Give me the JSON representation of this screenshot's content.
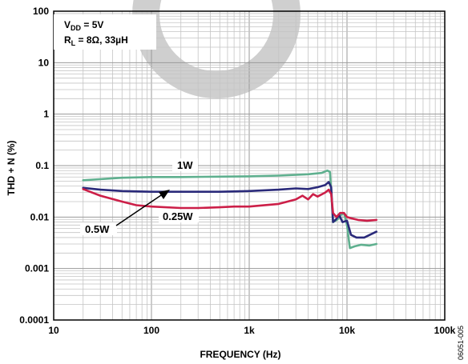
{
  "chart_data": {
    "type": "line",
    "xlabel": "FREQUENCY (Hz)",
    "ylabel": "THD + N (%)",
    "x_scale": "log",
    "y_scale": "log",
    "xlim": [
      10,
      100000
    ],
    "ylim": [
      0.0001,
      100
    ],
    "grid": true,
    "x_ticks": [
      {
        "value": 10,
        "label": "10"
      },
      {
        "value": 100,
        "label": "100"
      },
      {
        "value": 1000,
        "label": "1k"
      },
      {
        "value": 10000,
        "label": "10k"
      },
      {
        "value": 100000,
        "label": "100k"
      }
    ],
    "y_ticks": [
      {
        "value": 100,
        "label": "100"
      },
      {
        "value": 10,
        "label": "10"
      },
      {
        "value": 1,
        "label": "1"
      },
      {
        "value": 0.1,
        "label": "0.1"
      },
      {
        "value": 0.01,
        "label": "0.01"
      },
      {
        "value": 0.001,
        "label": "0.001"
      },
      {
        "value": 0.0001,
        "label": "0.0001"
      }
    ],
    "conditions": {
      "line1_main": "V",
      "line1_sub": "DD",
      "line1_rest": " = 5V",
      "line2_main": "R",
      "line2_sub": "L",
      "line2_rest": " = 8Ω, 33µH"
    },
    "figure_code": "06051-005",
    "series": [
      {
        "name": "1W",
        "color": "#5fb08f",
        "points": [
          [
            20,
            0.052
          ],
          [
            50,
            0.058
          ],
          [
            100,
            0.06
          ],
          [
            200,
            0.06
          ],
          [
            500,
            0.061
          ],
          [
            1000,
            0.062
          ],
          [
            2000,
            0.064
          ],
          [
            4000,
            0.068
          ],
          [
            5500,
            0.072
          ],
          [
            6300,
            0.08
          ],
          [
            6700,
            0.075
          ],
          [
            7200,
            0.008
          ],
          [
            8000,
            0.009
          ],
          [
            8700,
            0.011
          ],
          [
            9300,
            0.012
          ],
          [
            10000,
            0.007
          ],
          [
            10700,
            0.0025
          ],
          [
            12000,
            0.0027
          ],
          [
            14000,
            0.0029
          ],
          [
            17000,
            0.0028
          ],
          [
            20000,
            0.003
          ]
        ]
      },
      {
        "name": "0.5W",
        "color": "#2a2a7a",
        "points": [
          [
            20,
            0.037
          ],
          [
            30,
            0.034
          ],
          [
            50,
            0.032
          ],
          [
            100,
            0.031
          ],
          [
            200,
            0.031
          ],
          [
            500,
            0.031
          ],
          [
            1000,
            0.032
          ],
          [
            2000,
            0.034
          ],
          [
            3000,
            0.036
          ],
          [
            4000,
            0.035
          ],
          [
            5000,
            0.038
          ],
          [
            6000,
            0.042
          ],
          [
            6500,
            0.048
          ],
          [
            6900,
            0.038
          ],
          [
            7200,
            0.008
          ],
          [
            7700,
            0.009
          ],
          [
            8300,
            0.011
          ],
          [
            9000,
            0.008
          ],
          [
            10000,
            0.0085
          ],
          [
            11000,
            0.0045
          ],
          [
            12500,
            0.004
          ],
          [
            15000,
            0.004
          ],
          [
            20000,
            0.0052
          ]
        ]
      },
      {
        "name": "0.25W",
        "color": "#cc1f48",
        "points": [
          [
            20,
            0.035
          ],
          [
            30,
            0.026
          ],
          [
            50,
            0.02
          ],
          [
            70,
            0.017
          ],
          [
            100,
            0.016
          ],
          [
            200,
            0.015
          ],
          [
            300,
            0.015
          ],
          [
            500,
            0.0155
          ],
          [
            700,
            0.016
          ],
          [
            1000,
            0.016
          ],
          [
            2000,
            0.018
          ],
          [
            3000,
            0.022
          ],
          [
            3500,
            0.026
          ],
          [
            4000,
            0.022
          ],
          [
            4500,
            0.028
          ],
          [
            5000,
            0.025
          ],
          [
            6000,
            0.03
          ],
          [
            6500,
            0.034
          ],
          [
            6900,
            0.028
          ],
          [
            7200,
            0.012
          ],
          [
            7800,
            0.01
          ],
          [
            8500,
            0.012
          ],
          [
            9300,
            0.012
          ],
          [
            10000,
            0.01
          ],
          [
            11000,
            0.0095
          ],
          [
            13000,
            0.0088
          ],
          [
            16000,
            0.0085
          ],
          [
            20000,
            0.0088
          ]
        ]
      }
    ],
    "annotations": [
      {
        "text": "1W",
        "series": "1W"
      },
      {
        "text": "0.5W",
        "series": "0.5W",
        "arrow": true
      },
      {
        "text": "0.25W",
        "series": "0.25W"
      }
    ]
  }
}
